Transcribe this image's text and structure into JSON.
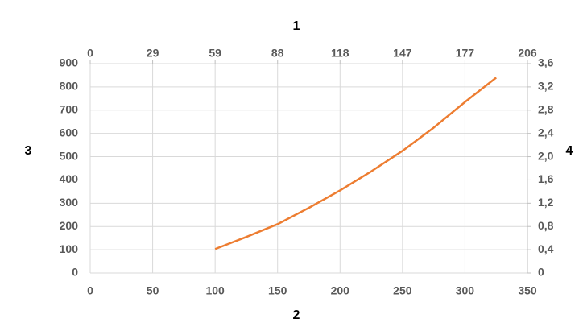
{
  "chart_data": {
    "type": "line",
    "x_top_label": "1",
    "x_label": "2",
    "y_label": "3",
    "y2_label": "4",
    "x": [
      100,
      125,
      150,
      175,
      200,
      225,
      250,
      275,
      300,
      325
    ],
    "series": [
      {
        "color": "#ed7d31",
        "values": [
          103,
          155,
          210,
          280,
          355,
          437,
          525,
          625,
          735,
          840
        ]
      }
    ],
    "xlim": [
      0,
      350
    ],
    "xticks": [
      0,
      50,
      100,
      150,
      200,
      250,
      300,
      350
    ],
    "x2lim": [
      0,
      206
    ],
    "x2ticks": [
      0,
      {
        "value": 29.43,
        "label": "29"
      },
      {
        "value": 58.86,
        "label": "59"
      },
      {
        "value": 88.29,
        "label": "88"
      },
      {
        "value": 117.71,
        "label": "118"
      },
      {
        "value": 147.14,
        "label": "147"
      },
      {
        "value": 176.57,
        "label": "177"
      },
      206
    ],
    "ylim": [
      0,
      900
    ],
    "yticks": [
      0,
      100,
      200,
      300,
      400,
      500,
      600,
      700,
      800,
      900
    ],
    "y2lim": [
      0,
      3.6
    ],
    "y2ticks": [
      0,
      {
        "value": 0.4,
        "label": "0,4"
      },
      {
        "value": 0.8,
        "label": "0,8"
      },
      {
        "value": 1.2,
        "label": "1,2"
      },
      {
        "value": 1.6,
        "label": "1,6"
      },
      {
        "value": 2.0,
        "label": "2,0"
      },
      {
        "value": 2.4,
        "label": "2,4"
      },
      {
        "value": 2.8,
        "label": "2,8"
      },
      {
        "value": 3.2,
        "label": "3,2"
      },
      {
        "value": 3.6,
        "label": "3,6"
      }
    ],
    "grid": true
  }
}
